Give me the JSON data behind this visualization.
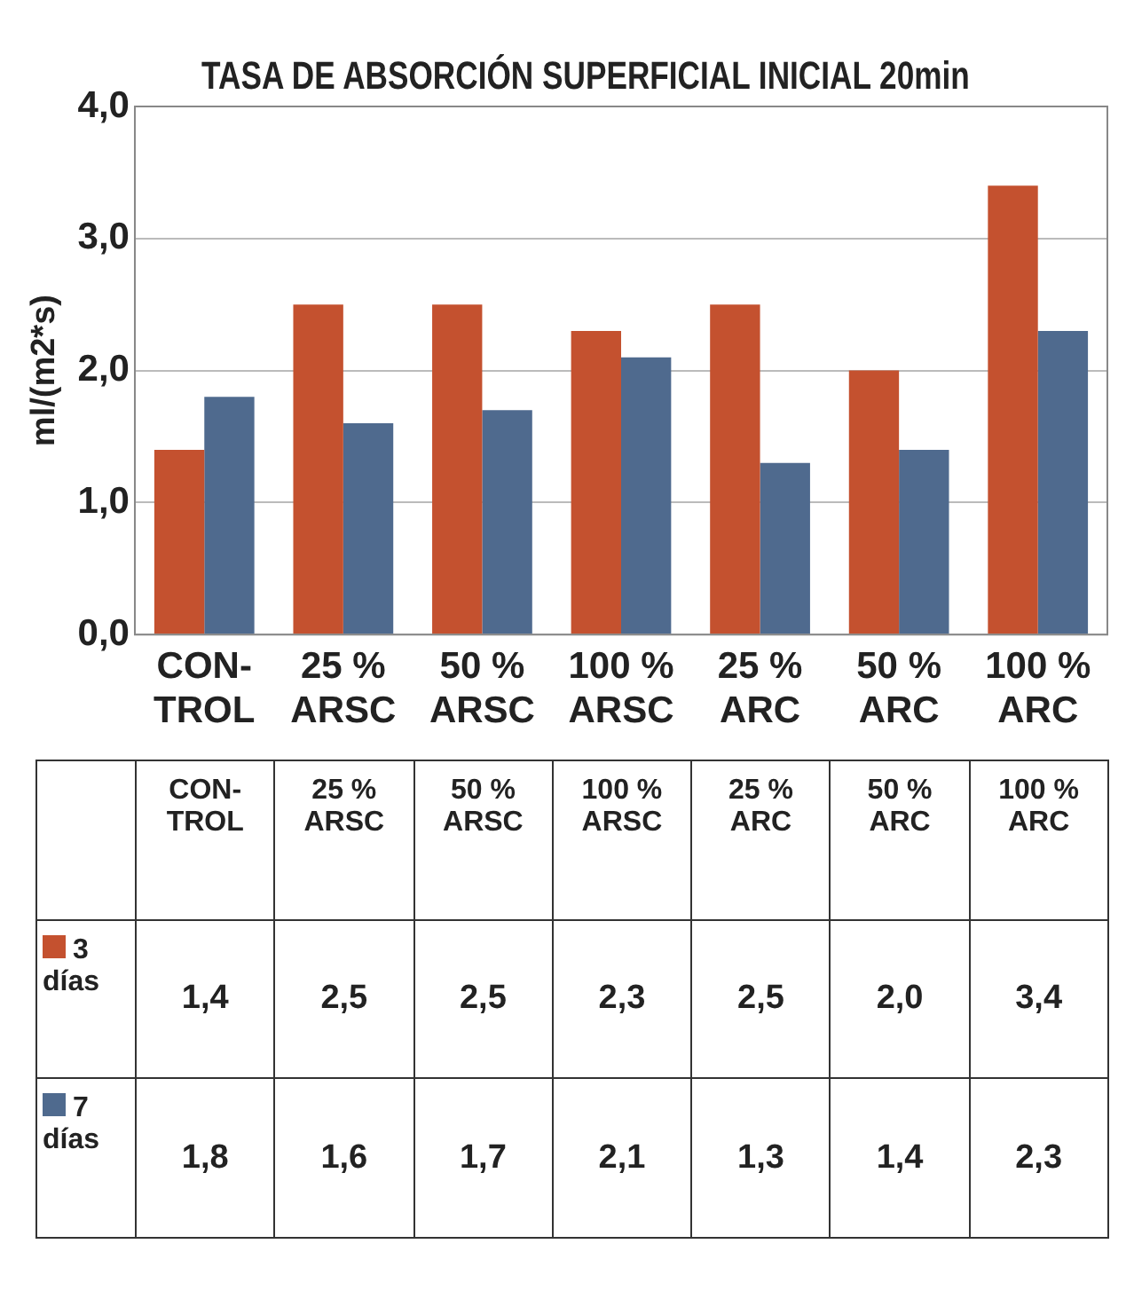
{
  "chart_data": {
    "type": "bar",
    "title": "TASA DE ABSORCIÓN SUPERFICIAL INICIAL 20min",
    "ylabel": "ml/(m2*s)",
    "categories": [
      "CON-\nTROL",
      "25 %\nARSC",
      "50 %\nARSC",
      "100 %\nARSC",
      "25 %\nARC",
      "50 %\nARC",
      "100 %\nARC"
    ],
    "series": [
      {
        "name": "3 días",
        "color": "#c4512f",
        "values": [
          1.4,
          2.5,
          2.5,
          2.3,
          2.5,
          2.0,
          3.4
        ],
        "value_labels": [
          "1,4",
          "2,5",
          "2,5",
          "2,3",
          "2,5",
          "2,0",
          "3,4"
        ]
      },
      {
        "name": "7 días",
        "color": "#4f6a8e",
        "values": [
          1.8,
          1.6,
          1.7,
          2.1,
          1.3,
          1.4,
          2.3
        ],
        "value_labels": [
          "1,8",
          "1,6",
          "1,7",
          "2,1",
          "1,3",
          "1,4",
          "2,3"
        ]
      }
    ],
    "ylim": [
      0,
      4
    ],
    "yticks": [
      {
        "value": 0,
        "label": "0,0"
      },
      {
        "value": 1,
        "label": "1,0"
      },
      {
        "value": 2,
        "label": "2,0"
      },
      {
        "value": 3,
        "label": "3,0"
      },
      {
        "value": 4,
        "label": "4,0"
      }
    ],
    "grid": "y",
    "legend": "bottom"
  }
}
